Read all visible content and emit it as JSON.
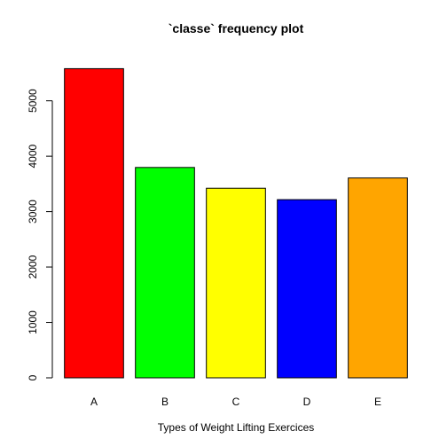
{
  "chart_data": {
    "type": "bar",
    "title": "`classe` frequency plot",
    "xlabel": "Types of Weight Lifting Exercices",
    "ylabel": "",
    "categories": [
      "A",
      "B",
      "C",
      "D",
      "E"
    ],
    "values": [
      5580,
      3797,
      3422,
      3216,
      3607
    ],
    "colors": [
      "#ff0000",
      "#00ff00",
      "#ffff00",
      "#0000ff",
      "#ffa500"
    ],
    "yticks": [
      0,
      1000,
      2000,
      3000,
      4000,
      5000
    ],
    "ylim": [
      0,
      5859
    ],
    "grid": false,
    "legend": "none"
  }
}
